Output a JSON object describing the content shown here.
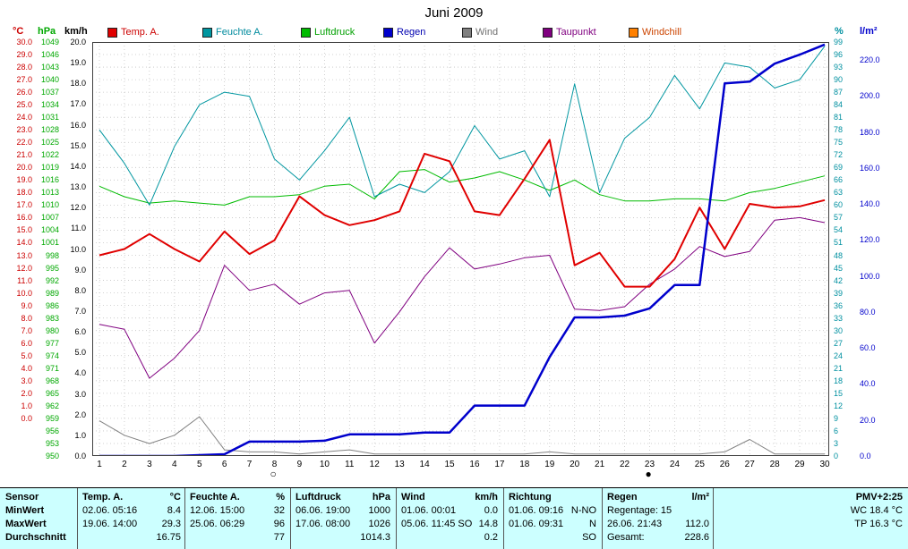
{
  "title": "Juni 2009",
  "legend": [
    {
      "label": "Temp. A.",
      "color": "#e00000",
      "text_color": "#cc0000"
    },
    {
      "label": "Feuchte A.",
      "color": "#0096a0",
      "text_color": "#008b9e"
    },
    {
      "label": "Luftdruck",
      "color": "#00bb00",
      "text_color": "#00a000"
    },
    {
      "label": "Regen",
      "color": "#0000cc",
      "text_color": "#0000b0"
    },
    {
      "label": "Wind",
      "color": "#808080",
      "text_color": "#707070"
    },
    {
      "label": "Taupunkt",
      "color": "#800080",
      "text_color": "#800080"
    },
    {
      "label": "Windchill",
      "color": "#ff8000",
      "text_color": "#cc4400"
    }
  ],
  "axes": {
    "left_units": [
      {
        "label": "°C",
        "color": "#cc0000"
      },
      {
        "label": "hPa",
        "color": "#00a800"
      },
      {
        "label": "km/h",
        "color": "#000000"
      }
    ],
    "right_units": [
      {
        "label": "%",
        "color": "#0090a0"
      },
      {
        "label": "l/m²",
        "color": "#0000cc"
      }
    ],
    "celsius_ticks": [
      "30.0",
      "29.0",
      "28.0",
      "27.0",
      "26.0",
      "25.0",
      "24.0",
      "23.0",
      "22.0",
      "21.0",
      "20.0",
      "19.0",
      "18.0",
      "17.0",
      "16.0",
      "15.0",
      "14.0",
      "13.0",
      "12.0",
      "11.0",
      "10.0",
      "9.0",
      "8.0",
      "7.0",
      "6.0",
      "5.0",
      "4.0",
      "3.0",
      "2.0",
      "1.0",
      "0.0"
    ],
    "hpa_ticks": [
      "1049",
      "1046",
      "1043",
      "1040",
      "1037",
      "1034",
      "1031",
      "1028",
      "1025",
      "1022",
      "1019",
      "1016",
      "1013",
      "1010",
      "1007",
      "1004",
      "1001",
      "998",
      "995",
      "992",
      "989",
      "986",
      "983",
      "980",
      "977",
      "974",
      "971",
      "968",
      "965",
      "962",
      "959",
      "956",
      "953",
      "950"
    ],
    "kmh_ticks": [
      "20.0",
      "19.0",
      "18.0",
      "17.0",
      "16.0",
      "15.0",
      "14.0",
      "13.0",
      "12.0",
      "11.0",
      "10.0",
      "9.0",
      "8.0",
      "7.0",
      "6.0",
      "5.0",
      "4.0",
      "3.0",
      "2.0",
      "1.0",
      "0.0"
    ],
    "percent_ticks": [
      "99",
      "96",
      "93",
      "90",
      "87",
      "84",
      "81",
      "78",
      "75",
      "72",
      "69",
      "66",
      "63",
      "60",
      "57",
      "54",
      "51",
      "48",
      "45",
      "42",
      "39",
      "36",
      "33",
      "30",
      "27",
      "24",
      "21",
      "18",
      "15",
      "12",
      "9",
      "6",
      "3",
      "0"
    ],
    "lm2_ticks": [
      "220.0",
      "200.0",
      "180.0",
      "160.0",
      "140.0",
      "120.0",
      "100.0",
      "80.0",
      "60.0",
      "40.0",
      "20.0",
      "0.0"
    ],
    "day_ticks": [
      "1",
      "2",
      "3",
      "4",
      "5",
      "6",
      "7",
      "8",
      "9",
      "10",
      "11",
      "12",
      "13",
      "14",
      "15",
      "16",
      "17",
      "18",
      "19",
      "20",
      "21",
      "22",
      "23",
      "24",
      "25",
      "26",
      "27",
      "28",
      "29",
      "30"
    ]
  },
  "chart_data": {
    "type": "line",
    "title": "Juni 2009",
    "grid": true,
    "legend_position": "top",
    "x": [
      1,
      2,
      3,
      4,
      5,
      6,
      7,
      8,
      9,
      10,
      11,
      12,
      13,
      14,
      15,
      16,
      17,
      18,
      19,
      20,
      21,
      22,
      23,
      24,
      25,
      26,
      27,
      28,
      29,
      30
    ],
    "series": [
      {
        "name": "Temp. A.",
        "unit": "°C",
        "color": "#e00000",
        "width": 2,
        "axis_min": -3,
        "axis_max": 30,
        "values": [
          13.0,
          13.5,
          14.7,
          13.5,
          12.5,
          14.9,
          13.1,
          14.2,
          17.7,
          16.2,
          15.4,
          15.8,
          16.5,
          21.1,
          20.5,
          16.5,
          16.2,
          19.1,
          22.2,
          12.2,
          13.2,
          10.5,
          10.5,
          12.7,
          16.8,
          13.5,
          17.1,
          16.8,
          16.9,
          17.4
        ]
      },
      {
        "name": "Feuchte A.",
        "unit": "%",
        "color": "#0096a0",
        "width": 1,
        "axis_min": 0,
        "axis_max": 99,
        "values": [
          78,
          70,
          60,
          74,
          84,
          87,
          86,
          71,
          66,
          73,
          81,
          62,
          65,
          63,
          68,
          79,
          71,
          73,
          62,
          89,
          63,
          76,
          81,
          91,
          83,
          94,
          93,
          88,
          90,
          98
        ]
      },
      {
        "name": "Luftdruck",
        "unit": "hPa",
        "color": "#00bb00",
        "width": 1,
        "axis_min": 950,
        "axis_max": 1049,
        "values": [
          1014.5,
          1012,
          1010.5,
          1011,
          1010.5,
          1010,
          1012,
          1012,
          1012.5,
          1014.5,
          1015,
          1011.5,
          1018,
          1018.5,
          1015.5,
          1016.5,
          1018,
          1016,
          1013.5,
          1016,
          1012.5,
          1011,
          1011,
          1011.5,
          1011.5,
          1011,
          1013,
          1014,
          1015.5,
          1017
        ]
      },
      {
        "name": "Regen",
        "unit": "l/m²",
        "color": "#0000cc",
        "width": 2.5,
        "axis_min": 0,
        "axis_max": 230,
        "values": [
          0,
          0,
          0,
          0,
          0.5,
          1,
          8,
          8,
          8,
          8.5,
          12,
          12,
          12,
          13,
          13,
          28,
          28,
          28,
          55,
          77,
          77,
          78,
          82,
          95,
          95,
          207,
          208,
          218,
          223,
          228.6
        ]
      },
      {
        "name": "Wind",
        "unit": "km/h",
        "color": "#808080",
        "width": 1,
        "axis_min": 0,
        "axis_max": 20,
        "values": [
          1.7,
          1.0,
          0.6,
          1.0,
          1.9,
          0.3,
          0.2,
          0.2,
          0.1,
          0.2,
          0.3,
          0.1,
          0.1,
          0.1,
          0.1,
          0.1,
          0.1,
          0.1,
          0.2,
          0.1,
          0.1,
          0.1,
          0.1,
          0.1,
          0.1,
          0.2,
          0.8,
          0.1,
          0.1,
          0.1
        ]
      },
      {
        "name": "Taupunkt",
        "unit": "°C",
        "color": "#800080",
        "width": 1,
        "axis_min": -3,
        "axis_max": 30,
        "values": [
          7.5,
          7.1,
          3.2,
          4.8,
          7.0,
          12.2,
          10.2,
          10.7,
          9.1,
          10.0,
          10.2,
          6.0,
          8.5,
          11.3,
          13.6,
          11.9,
          12.3,
          12.8,
          13.0,
          8.7,
          8.6,
          8.9,
          10.7,
          11.9,
          13.7,
          12.9,
          13.3,
          15.8,
          16.0,
          15.6
        ]
      }
    ],
    "annotations": [
      {
        "symbol": "○",
        "day": 8,
        "name": "new-moon-marker"
      },
      {
        "symbol": "●",
        "day": 23,
        "name": "full-moon-marker"
      }
    ]
  },
  "summary": {
    "panel_color": "#ccffff",
    "row_labels": [
      "Sensor",
      "MinWert",
      "MaxWert",
      "Durchschnitt"
    ],
    "groups": [
      {
        "header": "Temp. A.",
        "unit": "°C",
        "rows": [
          [
            "02.06. 05:16",
            "8.4"
          ],
          [
            "19.06. 14:00",
            "29.3"
          ],
          [
            "",
            "16.75"
          ]
        ]
      },
      {
        "header": "Feuchte A.",
        "unit": "%",
        "rows": [
          [
            "12.06. 15:00",
            "32"
          ],
          [
            "25.06. 06:29",
            "96"
          ],
          [
            "",
            "77"
          ]
        ]
      },
      {
        "header": "Luftdruck",
        "unit": "hPa",
        "rows": [
          [
            "06.06. 19:00",
            "1000"
          ],
          [
            "17.06. 08:00",
            "1026"
          ],
          [
            "",
            "1014.3"
          ]
        ]
      },
      {
        "header": "Wind",
        "unit": "km/h",
        "rows": [
          [
            "01.06. 00:01",
            "0.0"
          ],
          [
            "05.06. 11:45 SO",
            "14.8"
          ],
          [
            "",
            "0.2"
          ]
        ]
      },
      {
        "header": "Richtung",
        "unit": "",
        "rows": [
          [
            "01.06. 09:16",
            "N-NO"
          ],
          [
            "01.06. 09:31",
            "N"
          ],
          [
            "",
            "SO"
          ]
        ]
      },
      {
        "header": "Regen",
        "unit": "l/m²",
        "rows": [
          [
            "Regentage: 15",
            ""
          ],
          [
            "26.06. 21:43",
            "112.0"
          ],
          [
            "Gesamt:",
            "228.6"
          ]
        ]
      },
      {
        "header": "PMV+2:25",
        "unit": "",
        "align": "right",
        "rows": [
          [
            "",
            "WC 18.4 °C"
          ],
          [
            "",
            "TP 16.3 °C"
          ],
          [
            "",
            ""
          ]
        ]
      }
    ]
  }
}
